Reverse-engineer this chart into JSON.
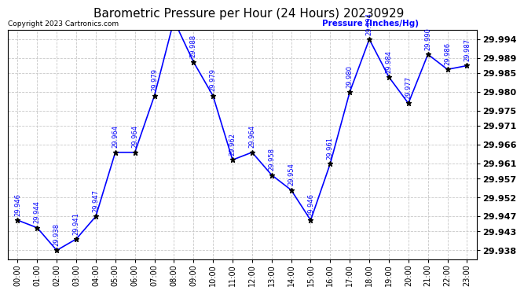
{
  "title": "Barometric Pressure per Hour (24 Hours) 20230929",
  "ylabel": "Pressure (Inches/Hg)",
  "copyright": "Copyright 2023 Cartronics.com",
  "hours": [
    0,
    1,
    2,
    3,
    4,
    5,
    6,
    7,
    8,
    9,
    10,
    11,
    12,
    13,
    14,
    15,
    16,
    17,
    18,
    19,
    20,
    21,
    22,
    23
  ],
  "hour_labels": [
    "00:00",
    "01:00",
    "02:00",
    "03:00",
    "04:00",
    "05:00",
    "06:00",
    "07:00",
    "08:00",
    "09:00",
    "10:00",
    "11:00",
    "12:00",
    "13:00",
    "14:00",
    "15:00",
    "16:00",
    "17:00",
    "18:00",
    "19:00",
    "20:00",
    "21:00",
    "22:00",
    "23:00"
  ],
  "values": [
    29.946,
    29.944,
    29.938,
    29.941,
    29.947,
    29.964,
    29.964,
    29.979,
    29.999,
    29.988,
    29.979,
    29.962,
    29.964,
    29.958,
    29.954,
    29.946,
    29.961,
    29.98,
    29.994,
    29.984,
    29.977,
    29.99,
    29.986,
    29.987
  ],
  "line_color": "#0000FF",
  "marker": "*",
  "marker_color": "#000000",
  "bg_color": "#FFFFFF",
  "grid_color": "#C8C8C8",
  "title_color": "#000000",
  "label_color": "#0000FF",
  "ytick_color": "#000000",
  "yticks": [
    29.938,
    29.943,
    29.947,
    29.952,
    29.957,
    29.961,
    29.966,
    29.971,
    29.975,
    29.98,
    29.985,
    29.989,
    29.994
  ],
  "ymin": 29.9355,
  "ymax": 29.9965
}
